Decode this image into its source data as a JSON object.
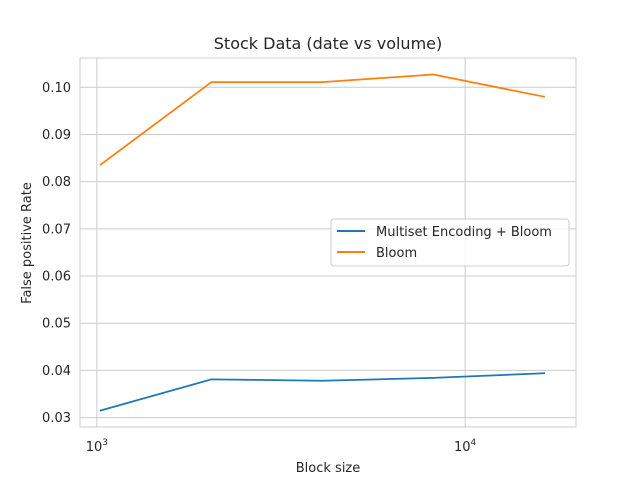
{
  "chart_data": {
    "type": "line",
    "title": "Stock Data (date vs volume)",
    "xlabel": "Block size",
    "ylabel": "False positive Rate",
    "xscale": "log",
    "xlim": [
      900,
      20000
    ],
    "ylim": [
      0.028,
      0.1062
    ],
    "x_ticks": [
      {
        "value": 1000,
        "base": "10",
        "exp": "3"
      },
      {
        "value": 10000,
        "base": "10",
        "exp": "4"
      }
    ],
    "y_ticks": [
      {
        "value": 0.03,
        "label": "0.03"
      },
      {
        "value": 0.04,
        "label": "0.04"
      },
      {
        "value": 0.05,
        "label": "0.05"
      },
      {
        "value": 0.06,
        "label": "0.06"
      },
      {
        "value": 0.07,
        "label": "0.07"
      },
      {
        "value": 0.08,
        "label": "0.08"
      },
      {
        "value": 0.09,
        "label": "0.09"
      },
      {
        "value": 0.1,
        "label": "0.10"
      }
    ],
    "grid": true,
    "legend_position": "center-right",
    "series": [
      {
        "name": "Multiset Encoding + Bloom",
        "color": "#1f77b4",
        "x": [
          1024,
          2048,
          4096,
          8192,
          16384
        ],
        "y": [
          0.0315,
          0.0381,
          0.0378,
          0.0384,
          0.0394
        ]
      },
      {
        "name": "Bloom",
        "color": "#ff7f0e",
        "x": [
          1024,
          2048,
          4096,
          8192,
          16384
        ],
        "y": [
          0.0836,
          0.1011,
          0.1011,
          0.1027,
          0.098
        ]
      }
    ]
  }
}
